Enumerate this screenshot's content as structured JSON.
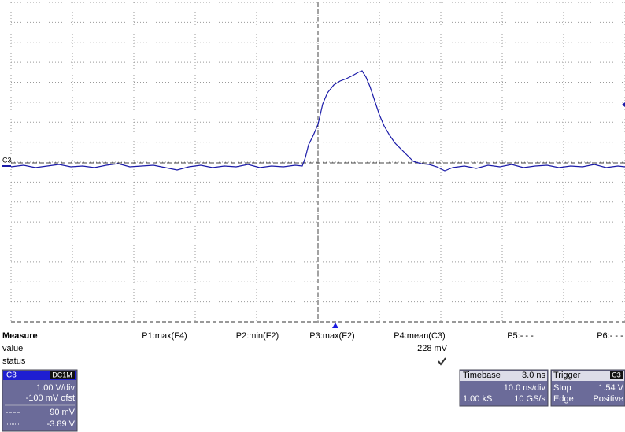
{
  "channel_label": "C3",
  "measure": {
    "title": "Measure",
    "row_labels": [
      "value",
      "status"
    ],
    "params": [
      "P1:max(F4)",
      "P2:min(F2)",
      "P3:max(F2)",
      "P4:mean(C3)",
      "P5:- - -",
      "P6:- - -"
    ],
    "p4_value": "228 mV"
  },
  "channel_box": {
    "name": "C3",
    "coupling": "DC1M",
    "vdiv": "1.00 V/div",
    "offset": "-100 mV ofst",
    "meas1": "90 mV",
    "meas2": "-3.89 V"
  },
  "timebase": {
    "title": "Timebase",
    "delay": "3.0 ns",
    "tdiv": "10.0 ns/div",
    "samples": "1.00 kS",
    "rate": "10 GS/s"
  },
  "trigger": {
    "title": "Trigger",
    "source": "C3",
    "mode": "Stop",
    "level": "1.54 V",
    "type": "Edge",
    "slope": "Positive"
  }
}
